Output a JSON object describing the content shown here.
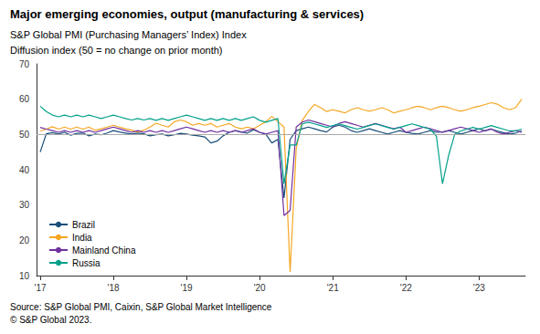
{
  "chart_data": {
    "type": "line",
    "title": "Major emerging economies, output (manufacturing & services)",
    "subtitle": [
      "S&P Global PMI (Purchasing Managers’ Index) Index",
      "Diffusion index (50 = no change on prior month)"
    ],
    "source": "Source: S&P Global PMI, Caixin, S&P Global Market Intelligence\n© S&P Global 2023.",
    "x": [
      2017.0,
      2017.0833333333333,
      2017.1666666666667,
      2017.25,
      2017.3333333333333,
      2017.4166666666667,
      2017.5,
      2017.5833333333333,
      2017.6666666666667,
      2017.75,
      2017.8333333333333,
      2017.9166666666667,
      2018.0,
      2018.0833333333333,
      2018.1666666666667,
      2018.25,
      2018.3333333333333,
      2018.4166666666667,
      2018.5,
      2018.5833333333333,
      2018.6666666666667,
      2018.75,
      2018.8333333333333,
      2018.9166666666667,
      2019.0,
      2019.0833333333333,
      2019.1666666666667,
      2019.25,
      2019.3333333333333,
      2019.4166666666667,
      2019.5,
      2019.5833333333333,
      2019.6666666666667,
      2019.75,
      2019.8333333333333,
      2019.9166666666667,
      2020.0,
      2020.0833333333333,
      2020.1666666666667,
      2020.25,
      2020.3333333333333,
      2020.4166666666667,
      2020.5,
      2020.5833333333333,
      2020.6666666666667,
      2020.75,
      2020.8333333333333,
      2020.9166666666667,
      2021.0,
      2021.0833333333333,
      2021.1666666666667,
      2021.25,
      2021.3333333333333,
      2021.4166666666667,
      2021.5,
      2021.5833333333333,
      2021.6666666666667,
      2021.75,
      2021.8333333333333,
      2021.9166666666667,
      2022.0,
      2022.0833333333333,
      2022.1666666666667,
      2022.25,
      2022.3333333333333,
      2022.4166666666667,
      2022.5,
      2022.5833333333333,
      2022.6666666666667,
      2022.75,
      2022.8333333333333,
      2022.9166666666667,
      2023.0,
      2023.0833333333333,
      2023.1666666666667,
      2023.25,
      2023.3333333333333,
      2023.4166666666667,
      2023.5,
      2023.5833333333333
    ],
    "xlim": [
      2016.95,
      2023.6333333333332
    ],
    "xticks": [
      {
        "value": 2017,
        "label": "'17"
      },
      {
        "value": 2018,
        "label": "'18"
      },
      {
        "value": 2019,
        "label": "'19"
      },
      {
        "value": 2020,
        "label": "'20"
      },
      {
        "value": 2021,
        "label": "'21"
      },
      {
        "value": 2022,
        "label": "'22"
      },
      {
        "value": 2023,
        "label": "'23"
      }
    ],
    "ylim": [
      10,
      70
    ],
    "yticks": [
      10,
      20,
      30,
      40,
      50,
      60,
      70
    ],
    "hline": 50,
    "grid": false,
    "legend": "lower left",
    "series": [
      {
        "name": "Brazil",
        "color": "#1a4f7a",
        "values": [
          45.0,
          50.2,
          50.5,
          50.1,
          50.6,
          49.8,
          50.3,
          50.4,
          49.6,
          50.1,
          49.9,
          50.4,
          51.1,
          50.7,
          50.4,
          50.1,
          50.4,
          50.2,
          49.6,
          49.9,
          50.1,
          49.6,
          49.9,
          50.3,
          50.1,
          49.8,
          49.6,
          49.3,
          47.6,
          48.1,
          49.6,
          50.6,
          51.1,
          50.7,
          50.4,
          51.3,
          50.6,
          50.1,
          47.6,
          48.6,
          32.0,
          48.6,
          51.1,
          51.6,
          52.1,
          51.6,
          51.1,
          50.7,
          52.1,
          52.6,
          52.1,
          51.1,
          50.6,
          51.1,
          51.6,
          51.1,
          50.6,
          50.1,
          50.6,
          51.1,
          50.6,
          50.3,
          50.1,
          50.6,
          51.1,
          50.6,
          50.7,
          51.1,
          50.6,
          50.1,
          50.6,
          51.1,
          51.6,
          51.0,
          51.5,
          51.0,
          50.5,
          50.1,
          50.4,
          51.0
        ]
      },
      {
        "name": "India",
        "color": "#f5a623",
        "values": [
          51.0,
          51.5,
          52.2,
          51.5,
          52.1,
          51.5,
          52.1,
          51.5,
          52.1,
          51.2,
          51.6,
          52.1,
          52.6,
          52.1,
          51.6,
          51.2,
          50.7,
          51.2,
          52.1,
          53.2,
          52.6,
          52.1,
          53.6,
          54.1,
          53.6,
          52.6,
          53.1,
          52.6,
          53.1,
          52.1,
          52.6,
          53.1,
          52.1,
          51.6,
          52.1,
          51.6,
          52.6,
          53.6,
          55.1,
          53.6,
          52.1,
          11.0,
          46.0,
          54.0,
          56.5,
          58.5,
          57.6,
          56.5,
          57.0,
          56.6,
          56.1,
          57.0,
          57.6,
          57.0,
          56.6,
          57.0,
          57.6,
          57.0,
          56.1,
          56.6,
          57.0,
          57.6,
          58.0,
          57.6,
          57.0,
          57.6,
          58.0,
          57.6,
          57.0,
          56.6,
          57.0,
          57.6,
          58.0,
          58.5,
          59.0,
          58.6,
          57.6,
          57.0,
          57.6,
          60.0
        ]
      },
      {
        "name": "Mainland China",
        "color": "#7030a0",
        "values": [
          52.0,
          51.5,
          51.1,
          50.6,
          51.1,
          50.6,
          51.1,
          50.6,
          51.1,
          50.6,
          51.1,
          51.6,
          52.1,
          51.6,
          51.1,
          50.6,
          51.1,
          50.6,
          51.1,
          50.6,
          51.1,
          50.6,
          51.1,
          51.6,
          52.1,
          51.6,
          51.1,
          50.6,
          51.1,
          50.6,
          51.1,
          50.6,
          51.1,
          50.6,
          51.1,
          51.6,
          50.6,
          50.1,
          50.6,
          51.1,
          27.0,
          28.5,
          52.1,
          53.5,
          54.1,
          53.6,
          53.1,
          52.6,
          52.1,
          53.1,
          53.6,
          53.1,
          52.6,
          52.1,
          52.6,
          53.1,
          52.6,
          52.1,
          51.6,
          52.1,
          50.6,
          51.1,
          51.6,
          52.1,
          51.6,
          51.1,
          50.6,
          51.1,
          51.6,
          52.1,
          51.6,
          51.1,
          50.6,
          51.1,
          51.6,
          50.6,
          50.1,
          50.6,
          51.1,
          50.6
        ]
      },
      {
        "name": "Russia",
        "color": "#00a08a",
        "values": [
          58.0,
          56.5,
          55.5,
          55.0,
          55.5,
          55.0,
          55.5,
          55.0,
          55.5,
          55.0,
          54.5,
          55.0,
          55.5,
          55.0,
          54.5,
          54.1,
          54.5,
          54.1,
          54.5,
          54.0,
          54.5,
          54.0,
          54.5,
          55.0,
          55.5,
          55.0,
          54.5,
          54.0,
          54.5,
          54.0,
          54.5,
          54.0,
          54.5,
          54.0,
          54.5,
          55.0,
          54.0,
          53.5,
          54.0,
          54.5,
          36.0,
          47.0,
          47.0,
          53.0,
          53.5,
          53.0,
          52.5,
          52.0,
          52.5,
          53.0,
          52.5,
          52.0,
          51.5,
          52.0,
          52.5,
          53.0,
          52.5,
          52.0,
          51.5,
          52.0,
          52.5,
          53.0,
          52.5,
          52.0,
          51.5,
          49.5,
          36.0,
          44.0,
          50.0,
          51.0,
          51.5,
          52.0,
          51.5,
          52.0,
          52.5,
          52.0,
          51.5,
          51.0,
          51.0,
          51.5
        ]
      }
    ]
  }
}
